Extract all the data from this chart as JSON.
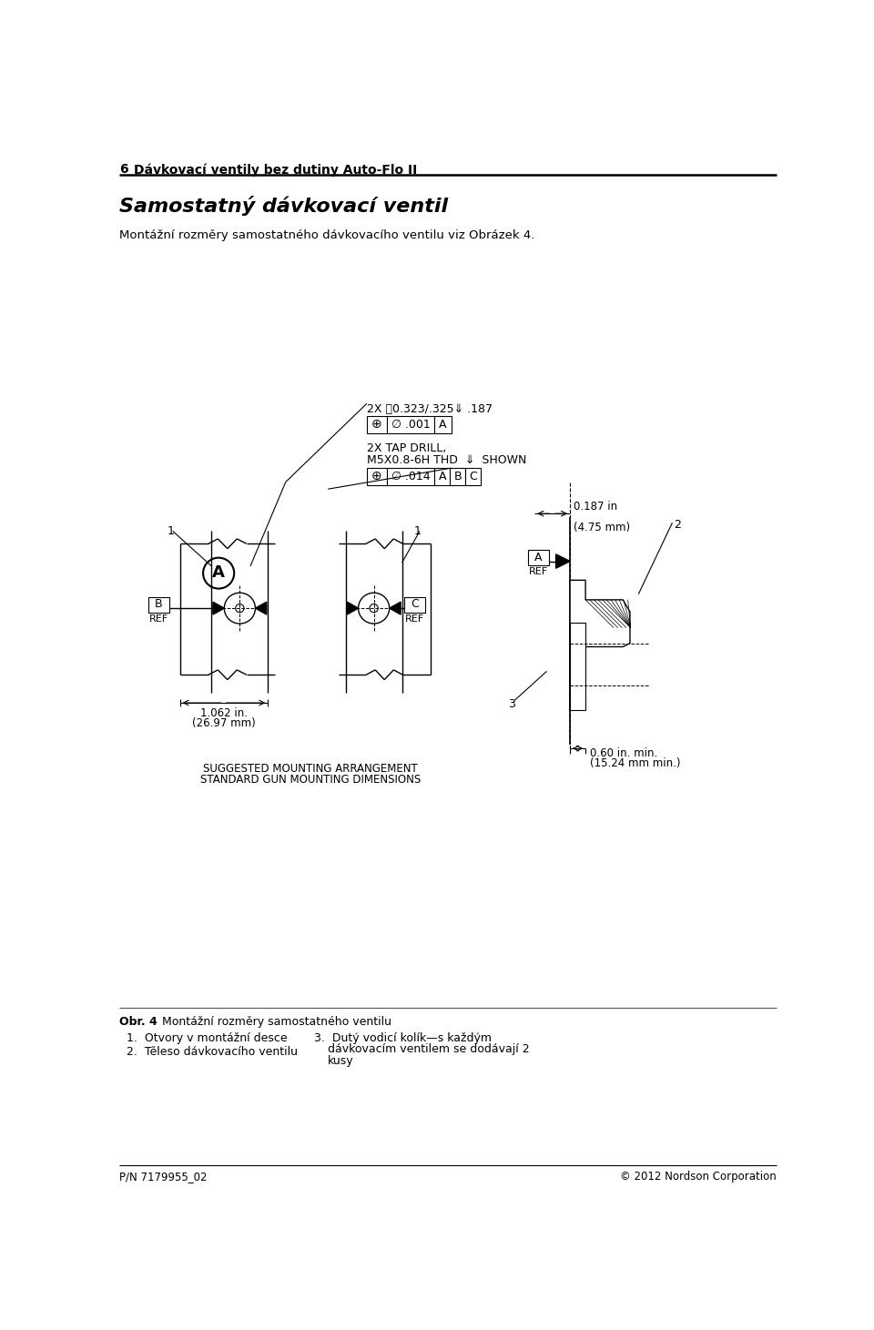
{
  "page_width": 9.6,
  "page_height": 14.61,
  "bg_color": "#ffffff",
  "header_number": "6",
  "header_text": "Dávkovací ventily bez dutiny Auto-Flo II",
  "title": "Samostatný dávkovací ventil",
  "subtitle": "Montážní rozměry samostatného dávkovacího ventilu viz Obrázek 4.",
  "footer_left": "P/N 7179955_02",
  "footer_right": "© 2012 Nordson Corporation",
  "fig_caption_label": "Obr. 4",
  "fig_caption_text": "Montážní rozměry samostatného ventilu",
  "list_item1": "1.  Otvory v montážní desce",
  "list_item2": "2.  Těleso dávkovacího ventilu",
  "list_item3": "3.  Dutý vodicí kolík—s každým dávkovacím ventilem se dodávají 2 kusy",
  "suggested_line1": "SUGGESTED MOUNTING ARRANGEMENT",
  "suggested_line2": "STANDARD GUN MOUNTING DIMENSIONS",
  "dim1_text": "2X ⌣0.323/.325⇓ .187",
  "dim2_line1": "2X TAP DRILL,",
  "dim2_line2": "M5X0.8-6H THD  ⇓  SHOWN",
  "label_187": "0.187 in",
  "label_475": "(4.75 mm)",
  "label_060a": "0.60 in. min.",
  "label_060b": "(15.24 mm min.)",
  "label_1062a": "1.062 in.",
  "label_1062b": "(26.97 mm)"
}
